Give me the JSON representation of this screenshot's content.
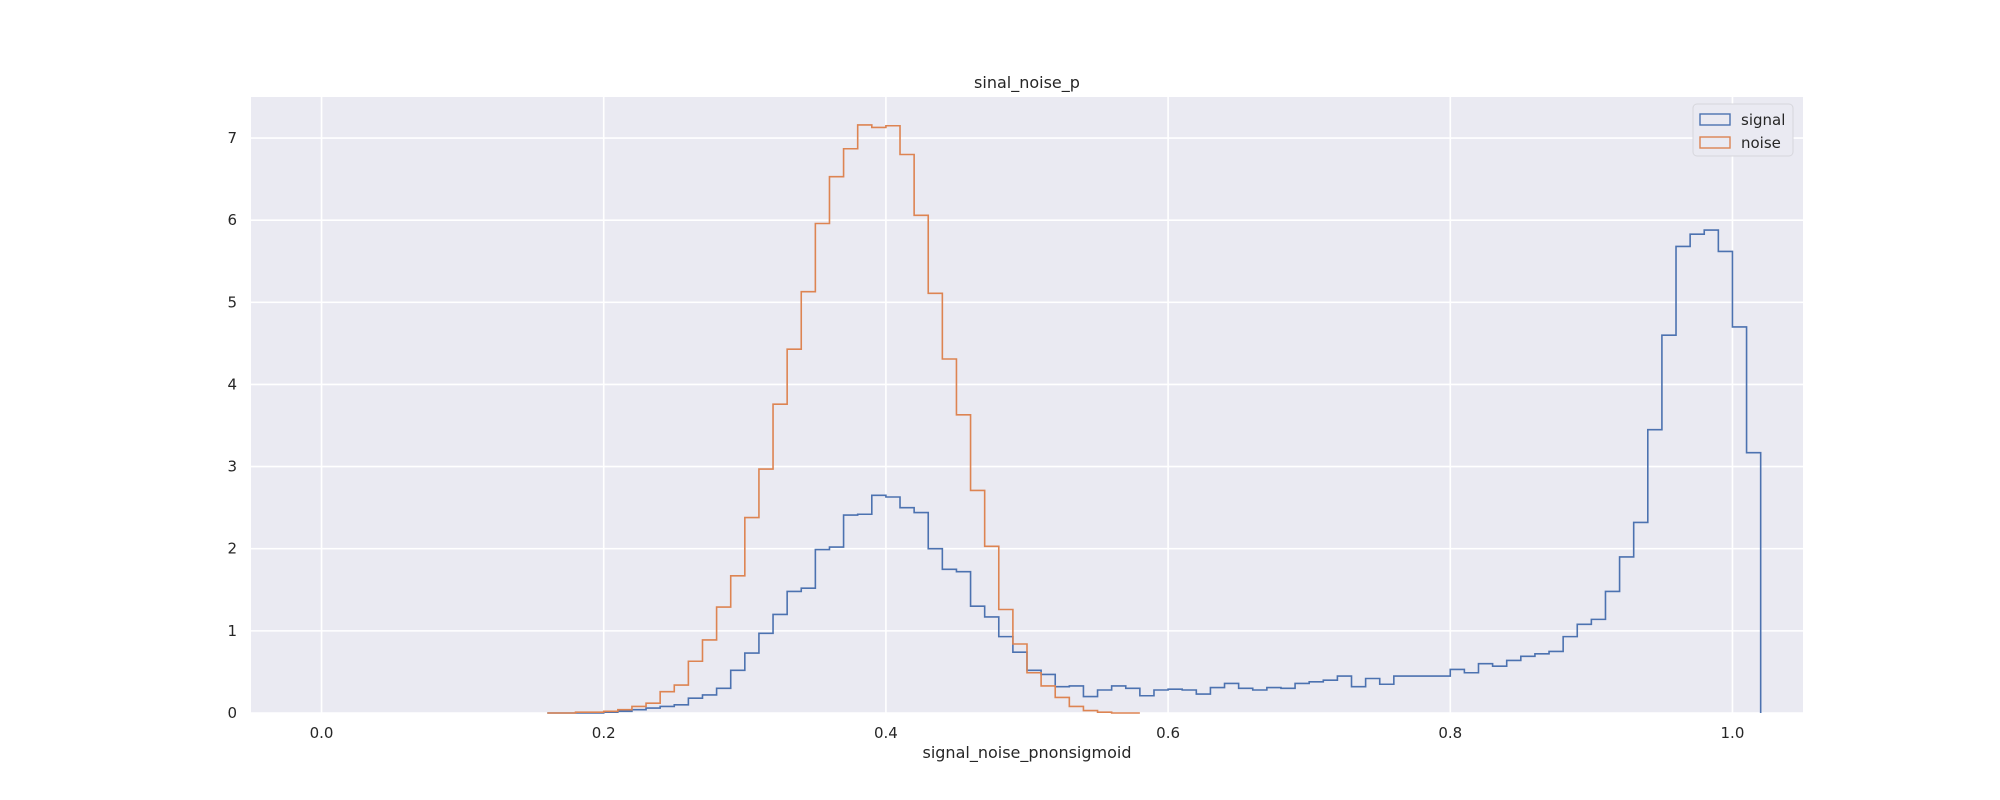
{
  "chart_data": {
    "type": "histogram-step",
    "title": "sinal_noise_p",
    "xlabel": "signal_noise_pnonsigmoid",
    "ylabel": "",
    "xlim": [
      -0.05,
      1.05
    ],
    "ylim": [
      0,
      7.5
    ],
    "xticks": [
      0.0,
      0.2,
      0.4,
      0.6,
      0.8,
      1.0
    ],
    "xtick_labels": [
      "0.0",
      "0.2",
      "0.4",
      "0.6",
      "0.8",
      "1.0"
    ],
    "yticks": [
      0,
      1,
      2,
      3,
      4,
      5,
      6,
      7
    ],
    "ytick_labels": [
      "0",
      "1",
      "2",
      "3",
      "4",
      "5",
      "6",
      "7"
    ],
    "grid": true,
    "legend_position": "top-right",
    "series": [
      {
        "name": "signal",
        "color": "#4c72b0",
        "x_start": 0.16,
        "bin_width": 0.01,
        "values": [
          0.0,
          0.0,
          0.0,
          0.0,
          0.01,
          0.02,
          0.04,
          0.06,
          0.08,
          0.1,
          0.18,
          0.22,
          0.3,
          0.52,
          0.73,
          0.97,
          1.2,
          1.48,
          1.52,
          1.99,
          2.02,
          2.41,
          2.42,
          2.65,
          2.63,
          2.5,
          2.44,
          2.0,
          1.75,
          1.72,
          1.3,
          1.17,
          0.93,
          0.74,
          0.52,
          0.47,
          0.32,
          0.33,
          0.2,
          0.28,
          0.33,
          0.3,
          0.21,
          0.28,
          0.29,
          0.28,
          0.23,
          0.31,
          0.36,
          0.3,
          0.28,
          0.31,
          0.3,
          0.36,
          0.38,
          0.4,
          0.45,
          0.32,
          0.42,
          0.35,
          0.45,
          0.45,
          0.45,
          0.45,
          0.53,
          0.49,
          0.6,
          0.57,
          0.64,
          0.69,
          0.72,
          0.75,
          0.93,
          1.08,
          1.14,
          1.48,
          1.9,
          2.32,
          3.45,
          4.6,
          5.68,
          5.83,
          5.88,
          5.62,
          4.7,
          3.17
        ]
      },
      {
        "name": "noise",
        "color": "#dd8452",
        "x_start": 0.16,
        "bin_width": 0.01,
        "values": [
          0.0,
          0.0,
          0.01,
          0.01,
          0.02,
          0.04,
          0.08,
          0.12,
          0.26,
          0.34,
          0.63,
          0.89,
          1.29,
          1.67,
          2.38,
          2.97,
          3.76,
          4.43,
          5.13,
          5.96,
          6.53,
          6.87,
          7.16,
          7.13,
          7.15,
          6.8,
          6.06,
          5.11,
          4.31,
          3.63,
          2.71,
          2.03,
          1.26,
          0.84,
          0.49,
          0.33,
          0.19,
          0.08,
          0.03,
          0.01,
          0.0,
          0.0
        ]
      }
    ]
  }
}
